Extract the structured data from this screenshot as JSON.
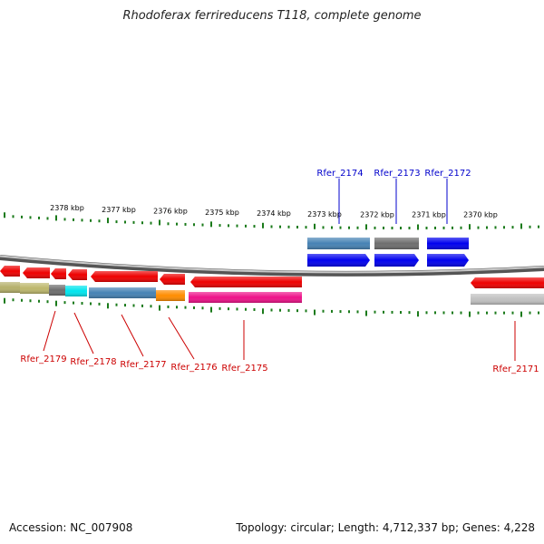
{
  "title": "Rhodoferax ferrireducens T118, complete genome",
  "footer": {
    "accession": "Accession: NC_007908",
    "summary": "Topology: circular; Length: 4,712,337 bp; Genes: 4,228"
  },
  "colors": {
    "tick": "#1a7a1a",
    "forward_label": "#0000cc",
    "reverse_label": "#cc0000",
    "backbone": "#888888"
  },
  "scale_labels": [
    "2378 kbp",
    "2377 kbp",
    "2376 kbp",
    "2375 kbp",
    "2374 kbp",
    "2373 kbp",
    "2372 kbp",
    "2371 kbp",
    "2370 kbp"
  ],
  "forward_genes": [
    {
      "label": "Rfer_2174",
      "color": "#0000ee",
      "product_color": "#4682b4"
    },
    {
      "label": "Rfer_2173",
      "color": "#0000ee",
      "product_color": "#6e6e6e"
    },
    {
      "label": "Rfer_2172",
      "color": "#0000ee",
      "product_color": "#0000ee"
    }
  ],
  "reverse_genes": [
    {
      "label": "Rfer_2179",
      "color": "#ee0000",
      "product_color": "#bdb76b"
    },
    {
      "label": "Rfer_2178",
      "color": "#ee0000",
      "product_color": "#00e5ee"
    },
    {
      "label": "Rfer_2177",
      "color": "#ee0000",
      "product_color": "#4682b4"
    },
    {
      "label": "Rfer_2176",
      "color": "#ee0000",
      "product_color": "#ff8c00"
    },
    {
      "label": "Rfer_2175",
      "color": "#ee0000",
      "product_color": "#ee1289"
    },
    {
      "label": "Rfer_2171",
      "color": "#ee0000",
      "product_color": "#c0c0c0"
    }
  ]
}
